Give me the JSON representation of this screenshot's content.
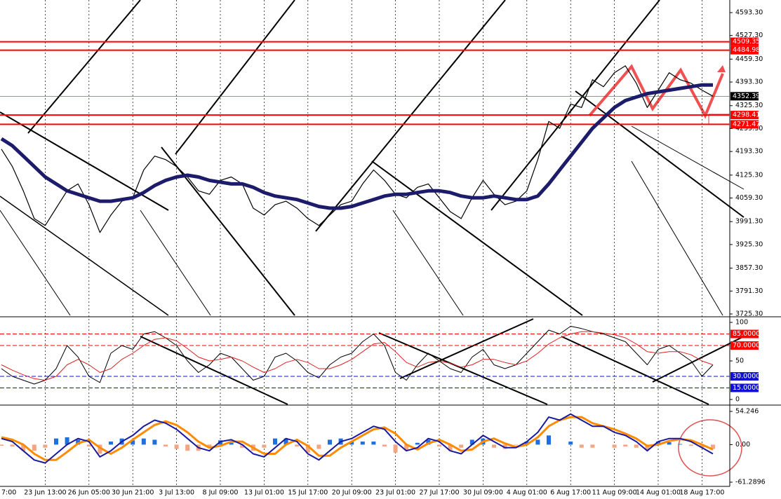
{
  "chart_data": [
    {
      "type": "line",
      "ylim": [
        3717.2,
        4629.6
      ],
      "yticks": [
        {
          "value": 4593.3,
          "label": "4593.30"
        },
        {
          "value": 4527.3,
          "label": "4527.30"
        },
        {
          "value": 4459.3,
          "label": "4459.30"
        },
        {
          "value": 4393.3,
          "label": "4393.30"
        },
        {
          "value": 4325.3,
          "label": "4325.30"
        },
        {
          "value": 4259.3,
          "label": "4259.30"
        },
        {
          "value": 4193.3,
          "label": "4193.30"
        },
        {
          "value": 4125.3,
          "label": "4125.30"
        },
        {
          "value": 4059.3,
          "label": "4059.30"
        },
        {
          "value": 3991.3,
          "label": "3991.30"
        },
        {
          "value": 3925.3,
          "label": "3925.30"
        },
        {
          "value": 3857.3,
          "label": "3857.30"
        },
        {
          "value": 3791.3,
          "label": "3791.30"
        },
        {
          "value": 3725.3,
          "label": "3725.30"
        }
      ],
      "levels": [
        {
          "value": 4509.35,
          "color": "#ff0000"
        },
        {
          "value": 4484.98,
          "color": "#ff0000"
        },
        {
          "value": 4298.41,
          "color": "#ff0000"
        },
        {
          "value": 4271.47,
          "color": "#ff0000"
        },
        {
          "value": 4352.39,
          "color": "#000000"
        }
      ],
      "series": [
        {
          "color": "#000000",
          "width": 1.2,
          "values": [
            4200,
            4150,
            4080,
            4000,
            3980,
            4030,
            4080,
            4100,
            4040,
            3960,
            4010,
            4050,
            4060,
            4140,
            4180,
            4170,
            4150,
            4120,
            4080,
            4070,
            4110,
            4120,
            4100,
            4030,
            4010,
            4040,
            4050,
            4030,
            4000,
            3980,
            4010,
            4040,
            4050,
            4100,
            4140,
            4110,
            4070,
            4060,
            4090,
            4100,
            4060,
            4020,
            4000,
            4060,
            4110,
            4070,
            4040,
            4050,
            4080,
            4170,
            4280,
            4260,
            4330,
            4320,
            4400,
            4380,
            4420,
            4440,
            4390,
            4320,
            4370,
            4420,
            4400,
            4390,
            4370,
            4352.39
          ]
        },
        {
          "color": "#1c1c6b",
          "width": 5,
          "values": [
            4230,
            4210,
            4180,
            4150,
            4120,
            4100,
            4080,
            4070,
            4060,
            4050,
            4050,
            4055,
            4060,
            4075,
            4095,
            4110,
            4120,
            4125,
            4120,
            4110,
            4105,
            4100,
            4100,
            4090,
            4075,
            4065,
            4060,
            4055,
            4045,
            4035,
            4030,
            4030,
            4035,
            4045,
            4055,
            4065,
            4070,
            4070,
            4075,
            4080,
            4080,
            4075,
            4065,
            4060,
            4060,
            4065,
            4060,
            4055,
            4055,
            4065,
            4100,
            4140,
            4180,
            4220,
            4260,
            4290,
            4320,
            4340,
            4350,
            4360,
            4365,
            4370,
            4375,
            4380,
            4385,
            4385
          ]
        }
      ]
    },
    {
      "type": "line",
      "ylim": [
        0,
        100
      ],
      "yticks": [
        100,
        50,
        0
      ],
      "levels": [
        {
          "value": 85,
          "label": "85.0000",
          "color": "#ff0000"
        },
        {
          "value": 70,
          "label": "70.0000",
          "color": "#ff0000"
        },
        {
          "value": 30,
          "label": "30.0000",
          "color": "#1010d0"
        },
        {
          "value": 15,
          "label": "15.0000",
          "color": "#1010d0"
        }
      ],
      "series": [
        {
          "color": "#000000",
          "width": 1,
          "values": [
            40,
            30,
            25,
            20,
            25,
            40,
            70,
            55,
            30,
            22,
            60,
            70,
            65,
            85,
            88,
            80,
            70,
            50,
            35,
            45,
            60,
            55,
            40,
            25,
            30,
            55,
            60,
            50,
            35,
            28,
            45,
            55,
            60,
            75,
            85,
            70,
            35,
            25,
            45,
            60,
            50,
            40,
            35,
            55,
            65,
            45,
            40,
            45,
            60,
            75,
            90,
            85,
            95,
            92,
            88,
            85,
            80,
            75,
            60,
            45,
            65,
            70,
            60,
            50,
            30,
            45
          ]
        },
        {
          "color": "#e02020",
          "width": 1,
          "values": [
            45,
            38,
            32,
            27,
            25,
            30,
            45,
            52,
            45,
            35,
            40,
            52,
            60,
            70,
            78,
            80,
            76,
            66,
            55,
            50,
            52,
            55,
            50,
            42,
            35,
            40,
            48,
            52,
            48,
            40,
            40,
            45,
            52,
            62,
            72,
            74,
            62,
            48,
            42,
            48,
            50,
            47,
            42,
            45,
            52,
            52,
            48,
            45,
            50,
            60,
            72,
            80,
            85,
            88,
            88,
            86,
            84,
            80,
            72,
            62,
            60,
            62,
            62,
            58,
            50,
            45
          ]
        }
      ]
    },
    {
      "type": "macd",
      "ylim": [
        -61.2896,
        54.246
      ],
      "yticks": [
        54.246,
        {
          "value": 0,
          "label": "0.00"
        },
        -61.2896
      ],
      "categories": [
        "7:00",
        null,
        null,
        null,
        "23 Jun 13:00",
        null,
        null,
        null,
        "26 Jun 05:00",
        null,
        null,
        null,
        "30 Jun 21:00",
        null,
        null,
        null,
        "3 Jul 13:00",
        null,
        null,
        null,
        "8 Jul 09:00",
        null,
        null,
        null,
        "13 Jul 01:00",
        null,
        null,
        null,
        "15 Jul 17:00",
        null,
        null,
        null,
        "20 Jul 09:00",
        null,
        null,
        null,
        "23 Jul 01:00",
        null,
        null,
        null,
        "27 Jul 17:00",
        null,
        null,
        null,
        "30 Jul 09:00",
        null,
        null,
        null,
        "4 Aug 01:00",
        null,
        null,
        null,
        "6 Aug 17:00",
        null,
        null,
        null,
        "11 Aug 09:00",
        null,
        null,
        null,
        "14 Aug 01:00",
        null,
        null,
        null,
        "18 Aug 17:00",
        null
      ],
      "series": [
        {
          "style": "bar",
          "color": "#1e6fe0",
          "negative_color": "#f4a582",
          "values": [
            -2,
            -3,
            -10,
            -10,
            -5,
            10,
            12,
            8,
            -3,
            -15,
            5,
            10,
            7,
            10,
            8,
            -3,
            -7,
            -10,
            -10,
            -5,
            7,
            3,
            -5,
            -10,
            -5,
            10,
            10,
            -3,
            -13,
            -7,
            8,
            10,
            5,
            5,
            5,
            -3,
            -13,
            -10,
            3,
            8,
            -3,
            -10,
            -5,
            8,
            10,
            -5,
            -7,
            -1,
            5,
            8,
            15,
            0,
            5,
            -5,
            -5,
            0,
            -5,
            -3,
            -5,
            -8,
            5,
            4,
            1,
            -2,
            -5,
            -7
          ]
        },
        {
          "style": "line",
          "color": "#ff8c00",
          "width": 3,
          "values": [
            12,
            8,
            0,
            -15,
            -25,
            -25,
            -12,
            2,
            8,
            -5,
            -15,
            -5,
            8,
            20,
            32,
            38,
            32,
            20,
            5,
            -5,
            -2,
            5,
            5,
            -5,
            -15,
            -15,
            0,
            8,
            -2,
            -18,
            -18,
            -5,
            5,
            15,
            25,
            28,
            18,
            0,
            -8,
            2,
            8,
            0,
            -10,
            -8,
            5,
            10,
            2,
            -4,
            0,
            12,
            30,
            40,
            45,
            45,
            35,
            30,
            25,
            18,
            10,
            -2,
            0,
            6,
            9,
            7,
            0,
            -8
          ]
        },
        {
          "style": "line",
          "color": "#1a1aa0",
          "width": 2,
          "values": [
            10,
            5,
            -10,
            -25,
            -30,
            -15,
            0,
            10,
            5,
            -20,
            -10,
            5,
            15,
            30,
            40,
            35,
            25,
            10,
            -5,
            -10,
            5,
            8,
            0,
            -15,
            -20,
            -5,
            10,
            5,
            -15,
            -25,
            -10,
            5,
            10,
            20,
            30,
            25,
            5,
            -10,
            -5,
            10,
            5,
            -10,
            -15,
            0,
            15,
            5,
            -5,
            -5,
            5,
            20,
            45,
            40,
            50,
            40,
            30,
            30,
            20,
            15,
            5,
            -10,
            5,
            10,
            10,
            5,
            -5,
            -15
          ]
        }
      ]
    }
  ]
}
